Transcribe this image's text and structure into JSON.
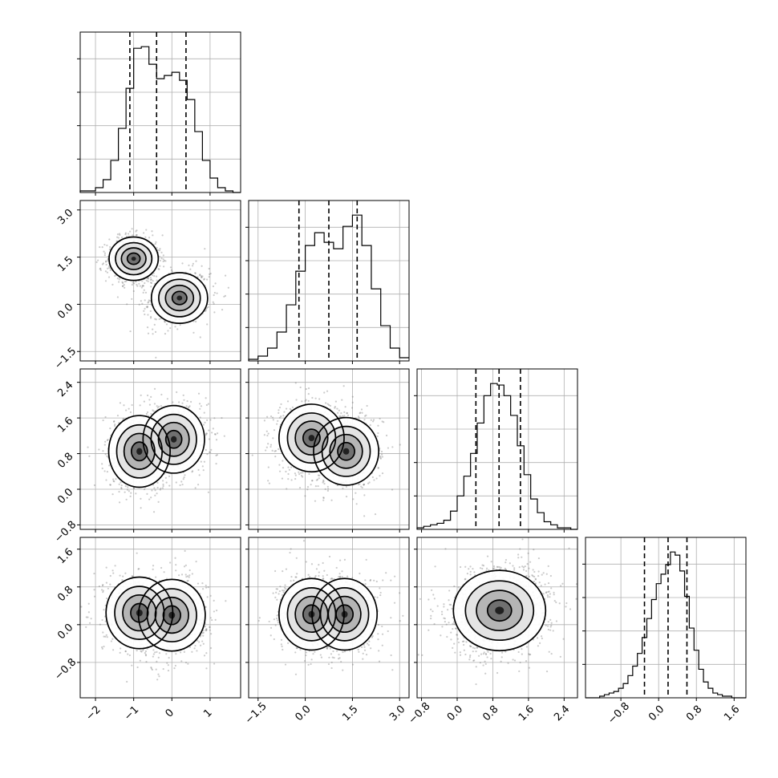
{
  "chart_data": {
    "type": "corner",
    "title": "",
    "parameters": 4,
    "grid": true,
    "axes": [
      {
        "range": [
          -2.4,
          1.8
        ],
        "ticks": [
          -2,
          -1,
          0,
          1
        ],
        "tick_labels": [
          "−2",
          "−1",
          "0",
          "1"
        ]
      },
      {
        "range": [
          -1.8,
          3.3
        ],
        "ticks": [
          -1.5,
          0.0,
          1.5,
          3.0
        ],
        "tick_labels": [
          "−1.5",
          "0.0",
          "1.5",
          "3.0"
        ]
      },
      {
        "range": [
          -0.9,
          2.7
        ],
        "ticks": [
          -0.8,
          0.0,
          0.8,
          1.6,
          2.4
        ],
        "tick_labels": [
          "−0.8",
          "0.0",
          "0.8",
          "1.6",
          "2.4"
        ]
      },
      {
        "range": [
          -1.55,
          1.85
        ],
        "ticks": [
          -0.8,
          0.0,
          0.8,
          1.6
        ],
        "tick_labels": [
          "−0.8",
          "0.0",
          "0.8",
          "1.6"
        ]
      }
    ],
    "marginals": [
      {
        "param": 0,
        "quantiles": [
          -1.1,
          -0.4,
          0.37
        ],
        "bin_edges": [
          -2.4,
          -2.2,
          -2.0,
          -1.8,
          -1.6,
          -1.4,
          -1.2,
          -1.0,
          -0.8,
          -0.6,
          -0.4,
          -0.2,
          0.0,
          0.2,
          0.4,
          0.6,
          0.8,
          1.0,
          1.2,
          1.4,
          1.6,
          1.8
        ],
        "counts": [
          1,
          1,
          3,
          8,
          20,
          40,
          65,
          90,
          91,
          80,
          71,
          73,
          75,
          70,
          58,
          38,
          20,
          9,
          3,
          1,
          0
        ]
      },
      {
        "param": 1,
        "quantiles": [
          -0.2,
          0.75,
          1.65
        ],
        "bin_edges": [
          -1.8,
          -1.5,
          -1.2,
          -0.9,
          -0.6,
          -0.3,
          0.0,
          0.3,
          0.6,
          0.9,
          1.2,
          1.5,
          1.8,
          2.1,
          2.4,
          2.7,
          3.0,
          3.3
        ],
        "counts": [
          1,
          3,
          8,
          18,
          35,
          56,
          72,
          80,
          74,
          70,
          84,
          91,
          72,
          45,
          22,
          8,
          2
        ]
      },
      {
        "param": 2,
        "quantiles": [
          0.42,
          0.94,
          1.42
        ],
        "bin_edges": [
          -0.9,
          -0.75,
          -0.6,
          -0.45,
          -0.3,
          -0.15,
          0.0,
          0.15,
          0.3,
          0.45,
          0.6,
          0.75,
          0.9,
          1.05,
          1.2,
          1.35,
          1.5,
          1.65,
          1.8,
          1.95,
          2.1,
          2.25,
          2.4,
          2.55,
          2.7
        ],
        "counts": [
          1,
          2,
          3,
          4,
          6,
          12,
          22,
          35,
          50,
          70,
          88,
          96,
          95,
          88,
          75,
          55,
          36,
          20,
          11,
          5,
          3,
          1,
          1,
          0
        ]
      },
      {
        "param": 3,
        "quantiles": [
          -0.3,
          0.2,
          0.6
        ],
        "bin_edges": [
          -1.55,
          -1.45,
          -1.35,
          -1.25,
          -1.15,
          -1.05,
          -0.95,
          -0.85,
          -0.75,
          -0.65,
          -0.55,
          -0.45,
          -0.35,
          -0.25,
          -0.15,
          -0.05,
          0.05,
          0.15,
          0.25,
          0.35,
          0.45,
          0.55,
          0.65,
          0.75,
          0.85,
          0.95,
          1.05,
          1.15,
          1.25,
          1.35,
          1.45,
          1.55,
          1.65,
          1.75,
          1.85
        ],
        "counts": [
          0,
          0,
          0,
          1,
          2,
          3,
          4,
          6,
          9,
          14,
          20,
          28,
          38,
          50,
          62,
          72,
          78,
          84,
          92,
          90,
          80,
          64,
          44,
          30,
          18,
          10,
          6,
          3,
          2,
          1,
          1,
          0,
          0,
          0
        ]
      }
    ],
    "joints": [
      {
        "x": 0,
        "y": 1,
        "modes": [
          {
            "cx": -1.0,
            "cy": 1.45,
            "sx": 0.28,
            "sy": 0.3,
            "rho": 0.0
          },
          {
            "cx": 0.2,
            "cy": 0.2,
            "sx": 0.32,
            "sy": 0.35,
            "rho": 0.1
          }
        ]
      },
      {
        "x": 0,
        "y": 2,
        "modes": [
          {
            "cx": -0.85,
            "cy": 0.85,
            "sx": 0.35,
            "sy": 0.35,
            "rho": 0.0
          },
          {
            "cx": 0.05,
            "cy": 1.12,
            "sx": 0.35,
            "sy": 0.33,
            "rho": 0.0
          }
        ]
      },
      {
        "x": 1,
        "y": 2,
        "modes": [
          {
            "cx": 0.2,
            "cy": 1.15,
            "sx": 0.45,
            "sy": 0.33,
            "rho": 0.0
          },
          {
            "cx": 1.3,
            "cy": 0.85,
            "sx": 0.45,
            "sy": 0.33,
            "rho": 0.0
          }
        ]
      },
      {
        "x": 0,
        "y": 3,
        "modes": [
          {
            "cx": -0.85,
            "cy": 0.25,
            "sx": 0.38,
            "sy": 0.33,
            "rho": 0.0
          },
          {
            "cx": 0.0,
            "cy": 0.2,
            "sx": 0.38,
            "sy": 0.33,
            "rho": 0.0
          }
        ]
      },
      {
        "x": 1,
        "y": 3,
        "modes": [
          {
            "cx": 0.2,
            "cy": 0.22,
            "sx": 0.45,
            "sy": 0.33,
            "rho": 0.0
          },
          {
            "cx": 1.25,
            "cy": 0.22,
            "sx": 0.45,
            "sy": 0.33,
            "rho": 0.0
          }
        ]
      },
      {
        "x": 2,
        "y": 3,
        "modes": [
          {
            "cx": 0.95,
            "cy": 0.3,
            "sx": 0.45,
            "sy": 0.37,
            "rho": 0.15
          }
        ]
      }
    ]
  }
}
